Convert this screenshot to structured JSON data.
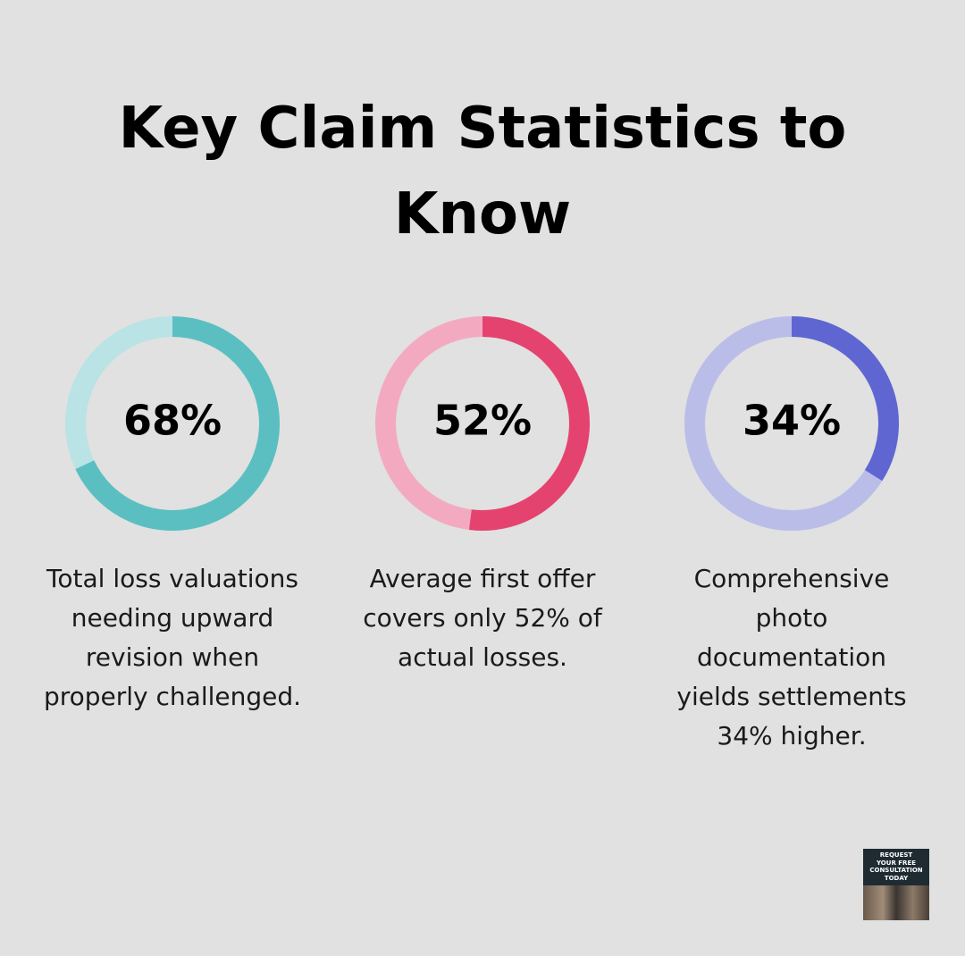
{
  "title": "Key Claim Statistics to Know",
  "chart_data": [
    {
      "type": "donut",
      "values": [
        68
      ],
      "value_labels": [
        "68%"
      ],
      "color": "#5bbfc1",
      "track_color": "#b9e3e5",
      "caption": "Total loss valuations needing upward revision when properly challenged."
    },
    {
      "type": "donut",
      "values": [
        52
      ],
      "value_labels": [
        "52%"
      ],
      "color": "#e5436f",
      "track_color": "#f3aac0",
      "caption": "Average first offer covers only 52% of actual losses."
    },
    {
      "type": "donut",
      "values": [
        34
      ],
      "value_labels": [
        "34%"
      ],
      "color": "#5f66d1",
      "track_color": "#bbbde9",
      "caption": "Comprehensive photo documentation yields settlements 34% higher."
    }
  ],
  "badge": {
    "lines": [
      "REQUEST",
      "YOUR FREE",
      "CONSULTATION",
      "TODAY"
    ]
  }
}
